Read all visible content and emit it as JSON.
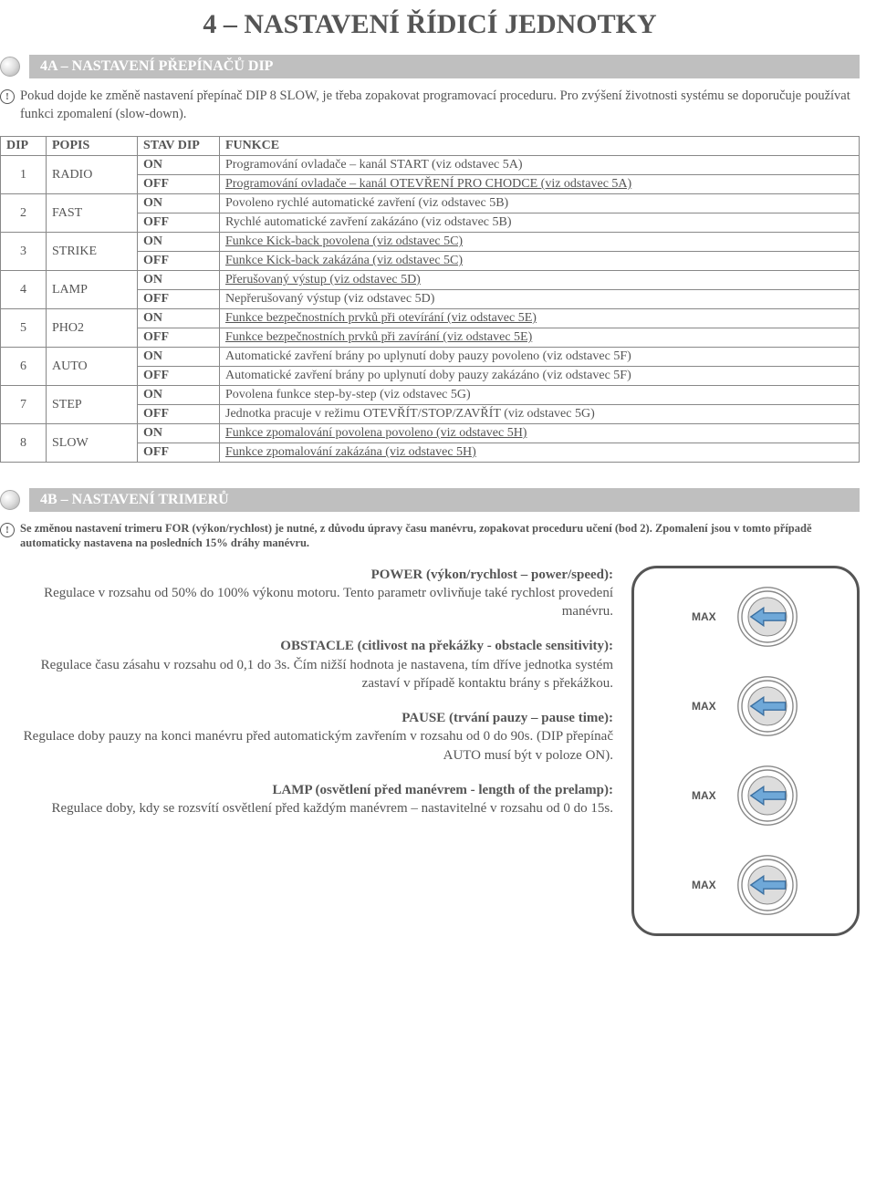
{
  "page_title": "4 – NASTAVENÍ ŘÍDICÍ JEDNOTKY",
  "section_4a": {
    "title": "4A – NASTAVENÍ PŘEPÍNAČŮ DIP",
    "note": "Pokud dojde ke změně nastavení přepínač DIP 8 SLOW, je třeba zopakovat programovací proceduru. Pro zvýšení životnosti systému se doporučuje používat funkci zpomalení (slow-down)."
  },
  "table": {
    "headers": {
      "dip": "DIP",
      "popis": "POPIS",
      "stav": "STAV DIP",
      "funkce": "FUNKCE"
    },
    "rows": [
      {
        "dip": "1",
        "popis": "RADIO",
        "states": [
          {
            "stav": "ON",
            "funkce": "Programování ovladače – kanál START (viz odstavec 5A)",
            "u": false
          },
          {
            "stav": "OFF",
            "funkce": "Programování ovladače – kanál OTEVŘENÍ PRO CHODCE (viz odstavec 5A)",
            "u": true
          }
        ]
      },
      {
        "dip": "2",
        "popis": "FAST",
        "states": [
          {
            "stav": "ON",
            "funkce": "Povoleno rychlé automatické zavření (viz odstavec 5B)",
            "u": false
          },
          {
            "stav": "OFF",
            "funkce": "Rychlé automatické zavření zakázáno (viz odstavec 5B)",
            "u": false
          }
        ]
      },
      {
        "dip": "3",
        "popis": "STRIKE",
        "states": [
          {
            "stav": "ON",
            "funkce": "Funkce Kick-back povolena (viz odstavec 5C)",
            "u": true
          },
          {
            "stav": "OFF",
            "funkce": "Funkce Kick-back zakázána (viz odstavec 5C)",
            "u": true
          }
        ]
      },
      {
        "dip": "4",
        "popis": "LAMP",
        "states": [
          {
            "stav": "ON",
            "funkce": "Přerušovaný výstup (viz odstavec 5D)",
            "u": true
          },
          {
            "stav": "OFF",
            "funkce": "Nepřerušovaný výstup (viz odstavec 5D)",
            "u": false
          }
        ]
      },
      {
        "dip": "5",
        "popis": "PHO2",
        "states": [
          {
            "stav": "ON",
            "funkce": "Funkce bezpečnostních prvků při otevírání (viz odstavec 5E)",
            "u": true
          },
          {
            "stav": "OFF",
            "funkce": "Funkce bezpečnostních prvků při zavírání (viz odstavec 5E)",
            "u": true
          }
        ]
      },
      {
        "dip": "6",
        "popis": "AUTO",
        "states": [
          {
            "stav": "ON",
            "funkce": "Automatické zavření brány po uplynutí doby pauzy povoleno (viz odstavec 5F)",
            "u": false
          },
          {
            "stav": "OFF",
            "funkce": "Automatické zavření brány po uplynutí doby pauzy zakázáno (viz odstavec 5F)",
            "u": false
          }
        ]
      },
      {
        "dip": "7",
        "popis": "STEP",
        "states": [
          {
            "stav": "ON",
            "funkce": "Povolena funkce step-by-step (viz odstavec 5G)",
            "u": false
          },
          {
            "stav": "OFF",
            "funkce": "Jednotka pracuje v režimu OTEVŘÍT/STOP/ZAVŘÍT (viz odstavec 5G)",
            "u": false
          }
        ]
      },
      {
        "dip": "8",
        "popis": "SLOW",
        "states": [
          {
            "stav": "ON",
            "funkce": "Funkce zpomalování povolena povoleno (viz odstavec 5H)",
            "u": true
          },
          {
            "stav": "OFF",
            "funkce": "Funkce zpomalování zakázána (viz odstavec 5H)",
            "u": true
          }
        ]
      }
    ]
  },
  "section_4b": {
    "title": "4B – NASTAVENÍ TRIMERŮ",
    "note": "Se změnou nastavení trimeru FOR (výkon/rychlost) je nutné, z důvodu úpravy času manévru, zopakovat proceduru učení (bod 2). Zpomalení jsou v tomto případě automaticky nastavena na posledních 15% dráhy manévru."
  },
  "trimmers": [
    {
      "title": "POWER (výkon/rychlost – power/speed):",
      "body": "Regulace v rozsahu od 50% do 100% výkonu motoru. Tento parametr ovlivňuje také rychlost provedení manévru.",
      "label": "MAX"
    },
    {
      "title": "OBSTACLE (citlivost na překážky - obstacle sensitivity):",
      "body": "Regulace času zásahu v rozsahu od 0,1 do 3s. Čím nižší hodnota je nastavena, tím dříve jednotka systém zastaví v případě kontaktu brány s překážkou.",
      "label": "MAX"
    },
    {
      "title": "PAUSE (trvání pauzy – pause time):",
      "body": "Regulace doby pauzy na konci manévru před automatickým zavřením v rozsahu od 0 do 90s. (DIP přepínač AUTO musí být v poloze ON).",
      "label": "MAX"
    },
    {
      "title": "LAMP (osvětlení před manévrem - length of the prelamp):",
      "body": "Regulace doby, kdy se rozsvítí osvětlení před každým manévrem – nastavitelné v rozsahu od 0 do 15s.",
      "label": "MAX"
    }
  ],
  "colors": {
    "text": "#555555",
    "section_bg": "#bfbfbf",
    "border": "#888888",
    "arrow_fill": "#6fa8d8",
    "arrow_stroke": "#3b6fa0",
    "dial_outer": "#888888",
    "dial_inner": "#dddddd"
  }
}
